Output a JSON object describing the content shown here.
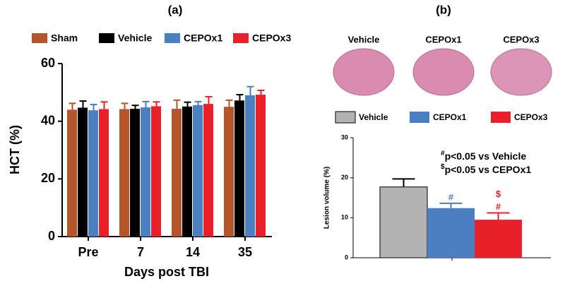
{
  "chart_data": [
    {
      "type": "grouped_bar",
      "title": "(a)",
      "x_label": "Days post TBI",
      "y_label": "HCT (%)",
      "categories": [
        "Pre",
        "7",
        "14",
        "35"
      ],
      "series": [
        {
          "name": "Sham",
          "color": "#b5562a",
          "values": [
            44,
            44.2,
            44.3,
            45
          ],
          "errors": [
            2.2,
            2,
            3,
            2.3
          ]
        },
        {
          "name": "Vehicle",
          "color": "#000000",
          "values": [
            44.7,
            44.3,
            45.1,
            47.2
          ],
          "errors": [
            2.3,
            1.2,
            1.5,
            2
          ]
        },
        {
          "name": "CEPOx1",
          "color": "#4a7fc1",
          "values": [
            43.8,
            44.8,
            45.6,
            49
          ],
          "errors": [
            2,
            2,
            1.2,
            3
          ]
        },
        {
          "name": "CEPOx3",
          "color": "#e8202a",
          "values": [
            44.2,
            45.2,
            46,
            49.2
          ],
          "errors": [
            2.5,
            1.5,
            2.5,
            1.5
          ]
        }
      ],
      "ylim": [
        0,
        60
      ],
      "yticks": [
        0,
        20,
        40,
        60
      ]
    },
    {
      "type": "bar",
      "title": "(b)",
      "y_label": "Lesion volume (%)",
      "image_labels": [
        "Vehicle",
        "CEPOx1",
        "CEPOx3"
      ],
      "series": [
        {
          "name": "Vehicle",
          "color": "#b3b3b3",
          "values": [
            17.7
          ],
          "errors": [
            2
          ]
        },
        {
          "name": "CEPOx1",
          "color": "#4a7fc1",
          "values": [
            12.4
          ],
          "errors": [
            1.2
          ],
          "marks": [
            "#"
          ]
        },
        {
          "name": "CEPOx3",
          "color": "#e8202a",
          "values": [
            9.5
          ],
          "errors": [
            1.7
          ],
          "marks": [
            "$",
            "#"
          ]
        }
      ],
      "annotations": [
        {
          "symbol": "#",
          "text": "p<0.05 vs Vehicle"
        },
        {
          "symbol": "$",
          "text": "p<0.05 vs CEPOx1"
        }
      ],
      "ylim": [
        0,
        30
      ],
      "yticks": [
        0,
        10,
        20,
        30
      ]
    }
  ]
}
